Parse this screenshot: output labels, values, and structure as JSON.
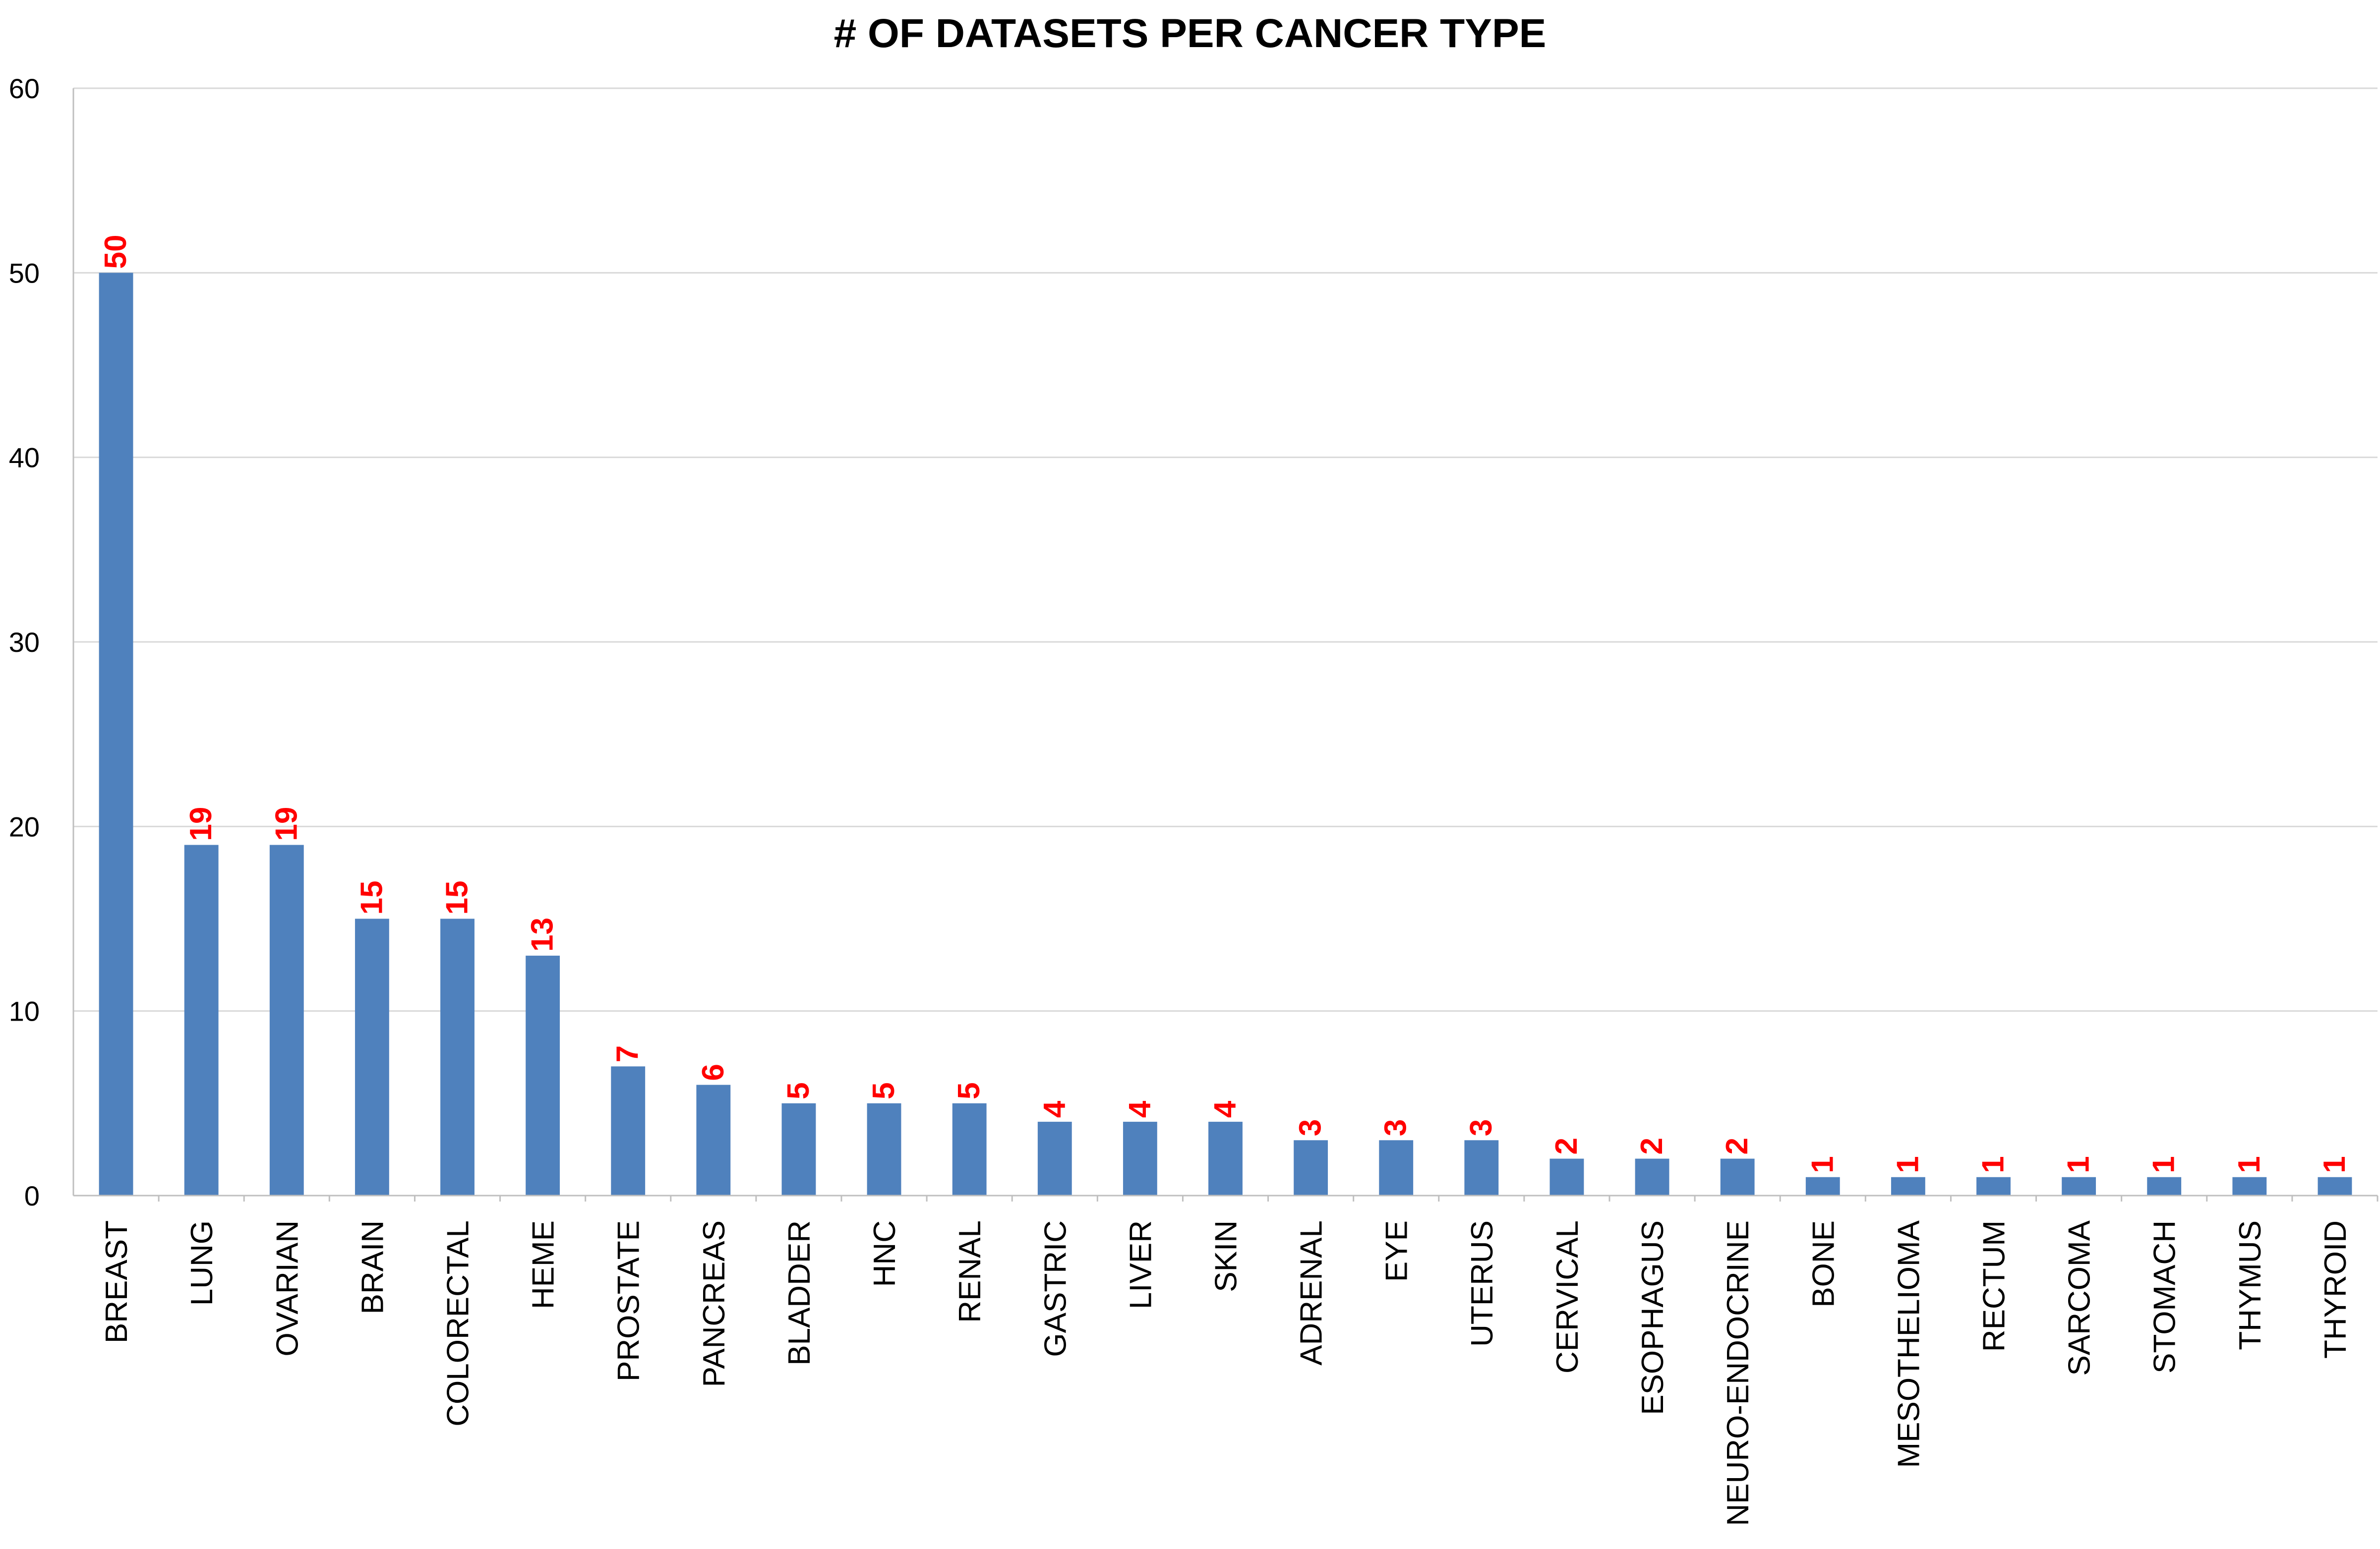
{
  "chart_data": {
    "type": "bar",
    "title": "# OF DATASETS PER CANCER TYPE",
    "xlabel": "",
    "ylabel": "",
    "ylim": [
      0,
      60
    ],
    "yticks": [
      0,
      10,
      20,
      30,
      40,
      50,
      60
    ],
    "grid": true,
    "legend": "none",
    "bar_color": "#4f81bd",
    "label_color": "#ff0000",
    "categories": [
      "BREAST",
      "LUNG",
      "OVARIAN",
      "BRAIN",
      "COLORECTAL",
      "HEME",
      "PROSTATE",
      "PANCREAS",
      "BLADDER",
      "HNC",
      "RENAL",
      "GASTRIC",
      "LIVER",
      "SKIN",
      "ADRENAL",
      "EYE",
      "UTERUS",
      "CERVICAL",
      "ESOPHAGUS",
      "NEURO-ENDOCRINE",
      "BONE",
      "MESOTHELIOMA",
      "RECTUM",
      "SARCOMA",
      "STOMACH",
      "THYMUS",
      "THYROID"
    ],
    "values": [
      50,
      19,
      19,
      15,
      15,
      13,
      7,
      6,
      5,
      5,
      5,
      4,
      4,
      4,
      3,
      3,
      3,
      2,
      2,
      2,
      1,
      1,
      1,
      1,
      1,
      1,
      1
    ]
  }
}
